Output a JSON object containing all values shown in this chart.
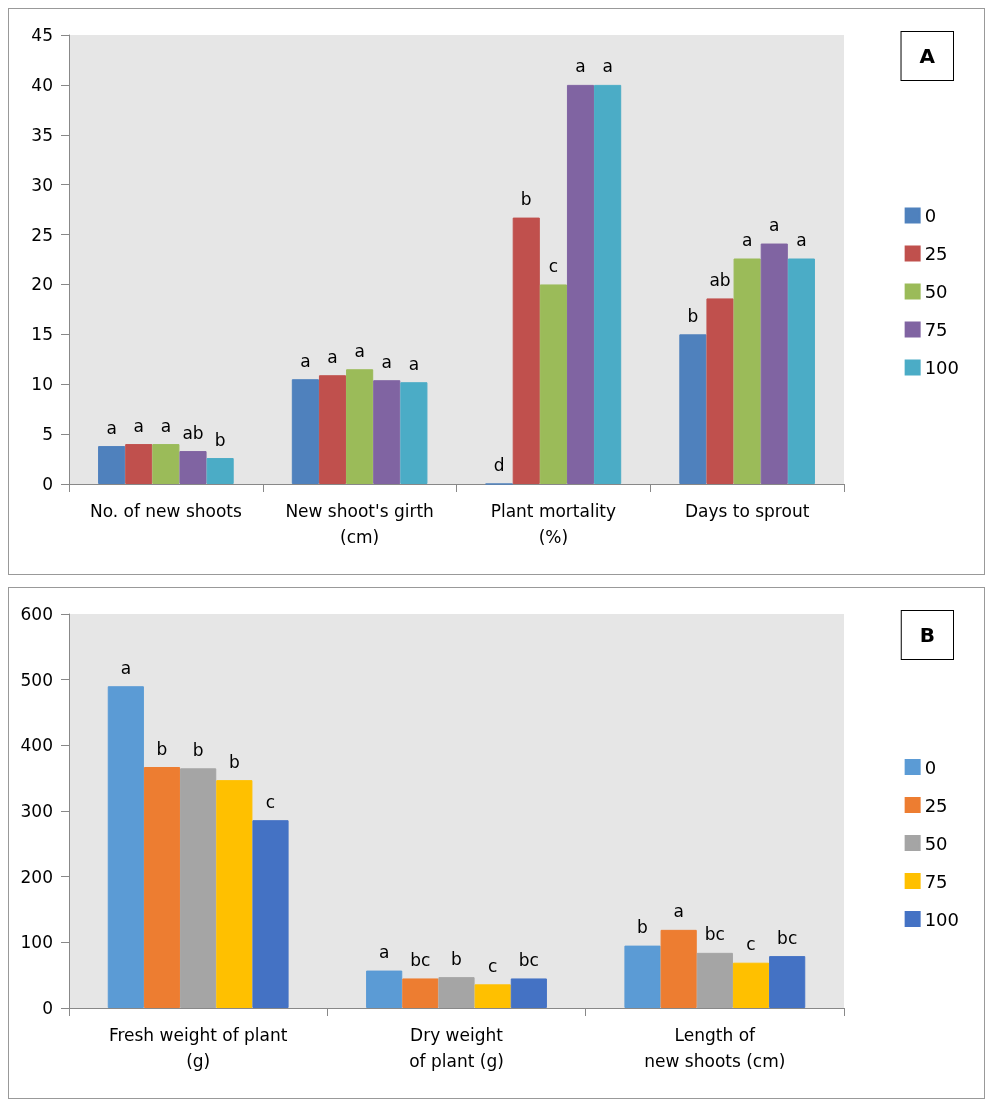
{
  "chart_data": [
    {
      "type": "bar",
      "annotations": [
        "A"
      ],
      "categories": [
        "No. of new shoots",
        "New shoot's girth\n(cm)",
        "Plant mortality\n(%)",
        "Days to sprout"
      ],
      "series": [
        {
          "name": "0",
          "color": "#4f81bd",
          "values": [
            3.8,
            10.5,
            0,
            15
          ],
          "value_labels": [
            "a",
            "a",
            "d",
            "b"
          ]
        },
        {
          "name": "25",
          "color": "#c0504d",
          "values": [
            4.0,
            10.9,
            26.7,
            18.6
          ],
          "value_labels": [
            "a",
            "a",
            "b",
            "ab"
          ]
        },
        {
          "name": "50",
          "color": "#9bbb59",
          "values": [
            4.0,
            11.5,
            20,
            22.6
          ],
          "value_labels": [
            "a",
            "a",
            "c",
            "a"
          ]
        },
        {
          "name": "75",
          "color": "#8064a2",
          "values": [
            3.3,
            10.4,
            40,
            24.1
          ],
          "value_labels": [
            "ab",
            "a",
            "a",
            "a"
          ]
        },
        {
          "name": "100",
          "color": "#4bacc6",
          "values": [
            2.6,
            10.2,
            40,
            22.6
          ],
          "value_labels": [
            "b",
            "a",
            "a",
            "a"
          ]
        }
      ],
      "ylim": [
        0,
        45
      ],
      "yticks": [
        0,
        5,
        10,
        15,
        20,
        25,
        30,
        35,
        40,
        45
      ],
      "grid": false,
      "legend": "right"
    },
    {
      "type": "bar",
      "annotations": [
        "B"
      ],
      "categories": [
        "Fresh weight of plant\n(g)",
        "Dry weight\nof plant (g)",
        "Length of\nnew shoots (cm)"
      ],
      "series": [
        {
          "name": "0",
          "color": "#5b9bd5",
          "values": [
            490,
            57,
            95
          ],
          "value_labels": [
            "a",
            "a",
            "b"
          ]
        },
        {
          "name": "25",
          "color": "#ed7d31",
          "values": [
            367,
            45,
            119
          ],
          "value_labels": [
            "b",
            "bc",
            "a"
          ]
        },
        {
          "name": "50",
          "color": "#a5a5a5",
          "values": [
            365,
            47,
            84
          ],
          "value_labels": [
            "b",
            "b",
            "bc"
          ]
        },
        {
          "name": "75",
          "color": "#ffc000",
          "values": [
            347,
            36,
            69
          ],
          "value_labels": [
            "b",
            "c",
            "c"
          ]
        },
        {
          "name": "100",
          "color": "#4472c4",
          "values": [
            286,
            45,
            79
          ],
          "value_labels": [
            "c",
            "bc",
            "bc"
          ]
        }
      ],
      "ylim": [
        0,
        600
      ],
      "yticks": [
        0,
        100,
        200,
        300,
        400,
        500,
        600
      ],
      "grid": false,
      "legend": "right"
    }
  ]
}
